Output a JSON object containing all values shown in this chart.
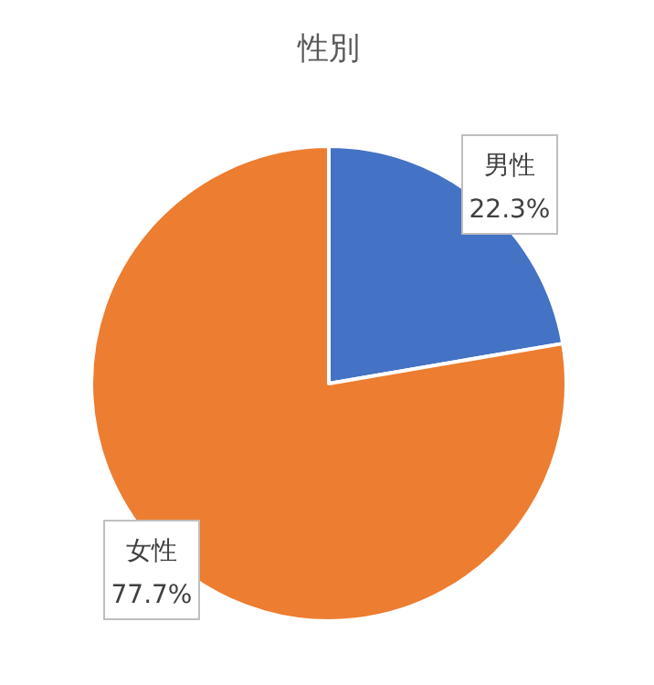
{
  "chart_data": {
    "type": "pie",
    "title": "性別",
    "categories": [
      "男性",
      "女性"
    ],
    "values": [
      22.3,
      77.7
    ],
    "value_labels": [
      "22.3%",
      "77.7%"
    ],
    "colors": [
      "#4472c4",
      "#ed7d31"
    ]
  }
}
